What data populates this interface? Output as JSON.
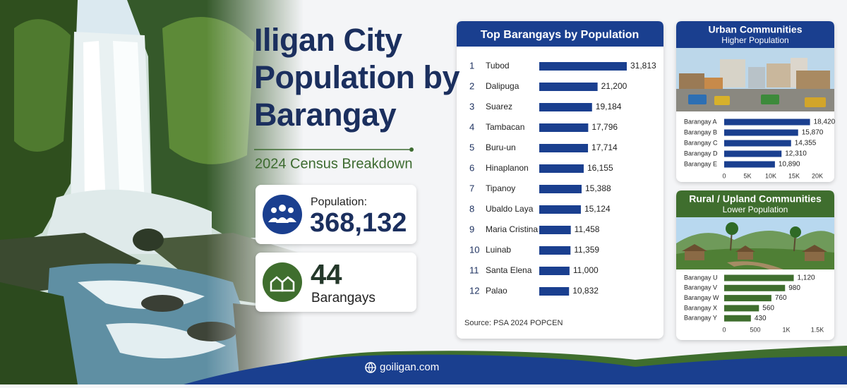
{
  "header": {
    "title": "Iligan City Population by Barangay",
    "subtitle": "2024 Census Breakdown"
  },
  "stats": [
    {
      "label": "Population:",
      "value": "368,132"
    },
    {
      "value": "44",
      "label": "Barangays"
    }
  ],
  "chart_data": [
    {
      "type": "bar",
      "title": "Top Barangays by Population",
      "ranks": [
        1,
        2,
        3,
        4,
        5,
        6,
        7,
        8,
        9,
        10,
        11,
        12
      ],
      "categories": [
        "Tubod",
        "Dalipuga",
        "Suarez",
        "Tambacan",
        "Buru-un",
        "Hinaplanon",
        "Tipanoy",
        "Ubaldo Laya",
        "Maria Cristina",
        "Luinab",
        "Santa Elena",
        "Palao"
      ],
      "values": [
        31813,
        21200,
        19184,
        17796,
        17714,
        16155,
        15388,
        15124,
        11458,
        11359,
        11000,
        10832
      ],
      "value_labels": [
        "31,813",
        "21,200",
        "19,184",
        "17,796",
        "17,714",
        "16,155",
        "15,388",
        "15,124",
        "11,458",
        "11,359",
        "11,000",
        "10,832"
      ],
      "color": "#1a3f8f",
      "source": "Source: PSA 2024 POPCEN"
    },
    {
      "type": "bar",
      "title": "Urban Communities",
      "subtitle": "Higher Population",
      "categories": [
        "Barangay A",
        "Barangay B",
        "Barangay C",
        "Barangay D",
        "Barangay E"
      ],
      "values": [
        18420,
        15870,
        14355,
        12310,
        10890
      ],
      "value_labels": [
        "18,420",
        "15,870",
        "14,355",
        "12,310",
        "10,890"
      ],
      "color": "#1a3f8f",
      "xlim": [
        0,
        20000
      ],
      "xticks": [
        0,
        {
          "value": 5000,
          "label": "5K"
        },
        {
          "value": 10000,
          "label": "10K"
        },
        {
          "value": 15000,
          "label": "15K"
        },
        {
          "value": 20000,
          "label": "20K"
        }
      ]
    },
    {
      "type": "bar",
      "title": "Rural / Upland Communities",
      "subtitle": "Lower Population",
      "categories": [
        "Barangay U",
        "Barangay V",
        "Barangay W",
        "Barangay X",
        "Barangay Y"
      ],
      "values": [
        1120,
        980,
        760,
        560,
        430
      ],
      "value_labels": [
        "1,120",
        "980",
        "760",
        "560",
        "430"
      ],
      "color": "#3f6e2e",
      "xlim": [
        0,
        1500
      ],
      "xticks": [
        0,
        500,
        {
          "value": 1000,
          "label": "1K"
        },
        {
          "value": 1500,
          "label": "1.5K"
        }
      ]
    }
  ],
  "footer": {
    "website": "goiligan.com"
  }
}
